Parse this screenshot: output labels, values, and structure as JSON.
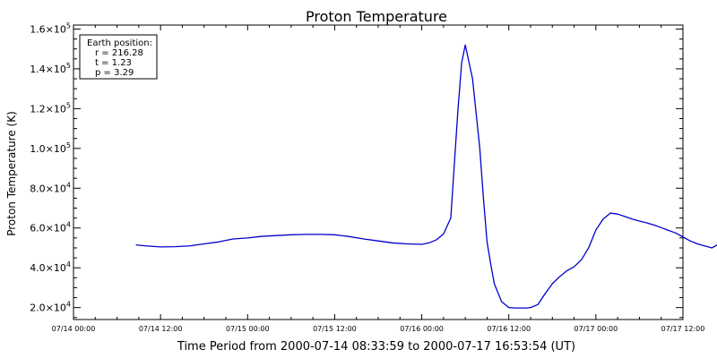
{
  "chart_data": {
    "type": "line",
    "title": "Proton Temperature",
    "xlabel": "Time Period from 2000-07-14 08:33:59 to 2000-07-17 16:53:54 (UT)",
    "ylabel": "Proton Temperature (K)",
    "x_unit": "hours since 07/14 00:00",
    "xlim": [
      0,
      84
    ],
    "ylim": [
      14000,
      162000
    ],
    "x_ticks": [
      {
        "value": 0,
        "label": "07/14 00:00"
      },
      {
        "value": 12,
        "label": "07/14 12:00"
      },
      {
        "value": 24,
        "label": "07/15 00:00"
      },
      {
        "value": 36,
        "label": "07/15 12:00"
      },
      {
        "value": 48,
        "label": "07/16 00:00"
      },
      {
        "value": 60,
        "label": "07/16 12:00"
      },
      {
        "value": 72,
        "label": "07/17 00:00"
      },
      {
        "value": 84,
        "label": "07/17 12:00"
      }
    ],
    "y_ticks": [
      {
        "value": 20000,
        "mantissa": "2.0×10",
        "exp": "4"
      },
      {
        "value": 40000,
        "mantissa": "4.0×10",
        "exp": "4"
      },
      {
        "value": 60000,
        "mantissa": "6.0×10",
        "exp": "4"
      },
      {
        "value": 80000,
        "mantissa": "8.0×10",
        "exp": "4"
      },
      {
        "value": 100000,
        "mantissa": "1.0×10",
        "exp": "5"
      },
      {
        "value": 120000,
        "mantissa": "1.2×10",
        "exp": "5"
      },
      {
        "value": 140000,
        "mantissa": "1.4×10",
        "exp": "5"
      },
      {
        "value": 160000,
        "mantissa": "1.6×10",
        "exp": "5"
      }
    ],
    "line_color": "#0000cc",
    "legend": {
      "placement": "top-left",
      "lines": [
        "Earth position:",
        "r = 216.28",
        "t = 1.23",
        "p = 3.29"
      ]
    },
    "series": [
      {
        "x": [
          8.6,
          10,
          12,
          14,
          16,
          18,
          20,
          22,
          24,
          26,
          28,
          30,
          32,
          34,
          36,
          38,
          40,
          42,
          44,
          46,
          48,
          49,
          50,
          51,
          52,
          53,
          53.5,
          54,
          55,
          56,
          56.5,
          57,
          57.5,
          58,
          59,
          60,
          61,
          62,
          62.5,
          63,
          64,
          65,
          66,
          67,
          68,
          69,
          70,
          71,
          72,
          73,
          74,
          75,
          76,
          77,
          78,
          79,
          80,
          81,
          82,
          83,
          84,
          85,
          86,
          87,
          88,
          89.7
        ],
        "y": [
          51500,
          51000,
          50500,
          50600,
          51000,
          52000,
          53000,
          54500,
          55000,
          55800,
          56200,
          56600,
          56800,
          56800,
          56600,
          55700,
          54500,
          53500,
          52500,
          52000,
          51800,
          52500,
          54000,
          57000,
          65000,
          120000,
          143000,
          152000,
          135000,
          100000,
          75000,
          53000,
          42000,
          32000,
          23000,
          20000,
          19800,
          19800,
          19800,
          20000,
          21500,
          27000,
          32000,
          35500,
          38500,
          40500,
          44000,
          50000,
          59000,
          64500,
          67500,
          67000,
          65800,
          64500,
          63500,
          62600,
          61500,
          60200,
          58800,
          57500,
          55500,
          53500,
          52000,
          51000,
          50000,
          53500
        ]
      }
    ]
  }
}
